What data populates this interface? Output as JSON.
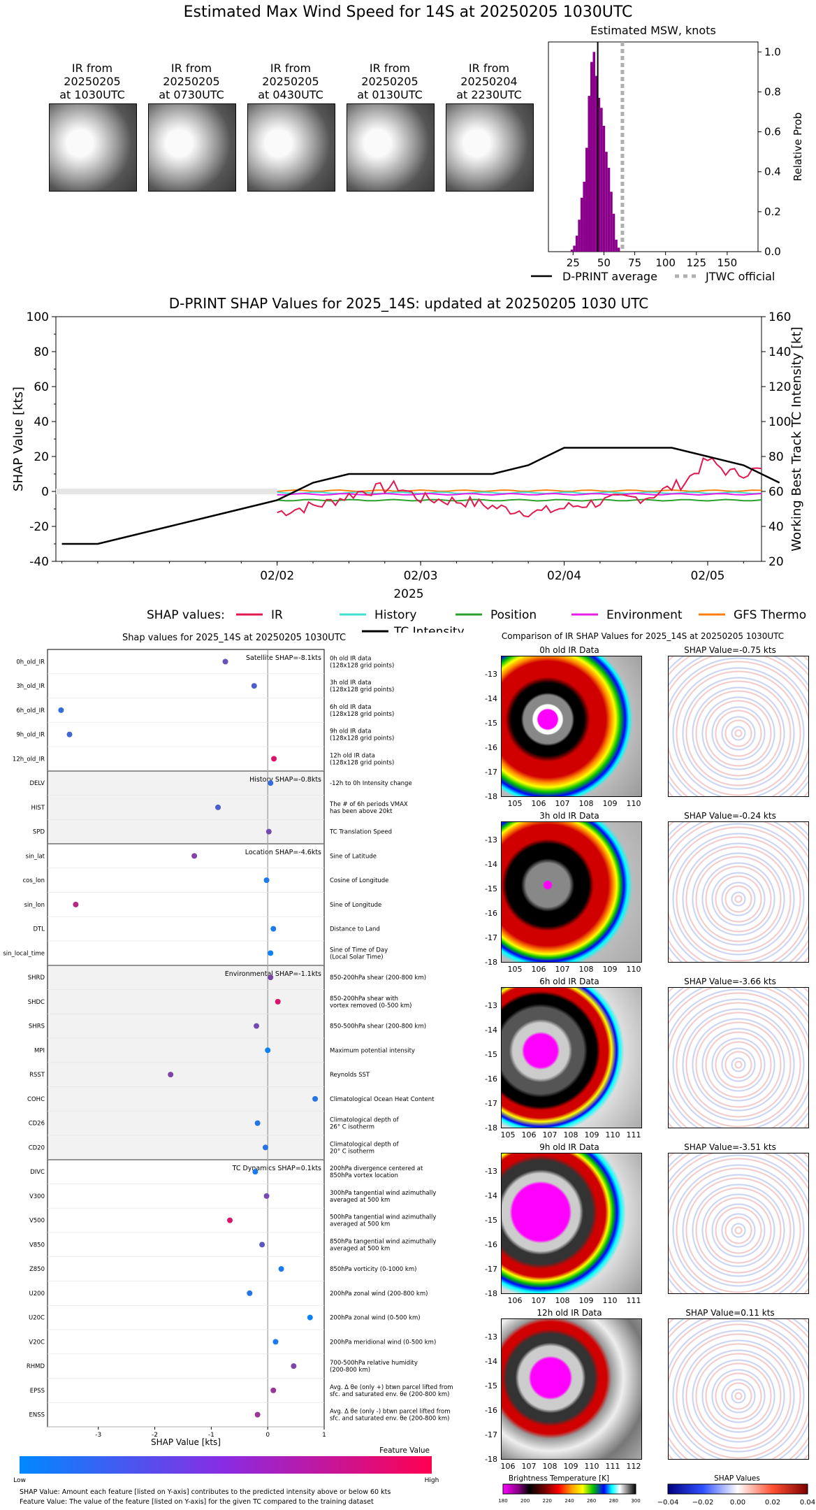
{
  "header": {
    "title": "Estimated Max Wind Speed for 14S at 20250205 1030UTC"
  },
  "ir_thumbnails": [
    {
      "line1": "IR from",
      "line2": "20250205",
      "line3": "at 1030UTC"
    },
    {
      "line1": "IR from",
      "line2": "20250205",
      "line3": "at 0730UTC"
    },
    {
      "line1": "IR from",
      "line2": "20250205",
      "line3": "at 0430UTC"
    },
    {
      "line1": "IR from",
      "line2": "20250205",
      "line3": "at 0130UTC"
    },
    {
      "line1": "IR from",
      "line2": "20250204",
      "line3": "at 2230UTC"
    }
  ],
  "msw": {
    "title": "Estimated MSW, knots",
    "ylabel": "Relative Prob",
    "legend_avg": "D-PRINT average",
    "legend_jtwc": "JTWC official",
    "xticks": [
      "25",
      "50",
      "75",
      "100",
      "125",
      "150"
    ],
    "yticks": [
      "0.0",
      "0.2",
      "0.4",
      "0.6",
      "0.8",
      "1.0"
    ],
    "color_bars": "#8b008b",
    "color_jtwc": "#b0b0b0"
  },
  "shap_ts": {
    "title": "D-PRINT SHAP Values for 2025_14S: updated at 20250205 1030 UTC",
    "ylabel_left": "SHAP Value [kts]",
    "ylabel_right": "Working Best Track TC Intensity [kt]",
    "xlabel": "2025",
    "xticks": [
      "02/02",
      "02/03",
      "02/04",
      "02/05"
    ],
    "yticks_left": [
      "-40",
      "-20",
      "0",
      "20",
      "40",
      "60",
      "80",
      "100"
    ],
    "yticks_right": [
      "20",
      "40",
      "60",
      "80",
      "100",
      "120",
      "140",
      "160"
    ],
    "legend_prefix": "SHAP values:",
    "legend": [
      {
        "name": "IR",
        "color": "#e0194f"
      },
      {
        "name": "History",
        "color": "#40e0d0"
      },
      {
        "name": "Position",
        "color": "#2ca02c"
      },
      {
        "name": "Environment",
        "color": "#e61ee6"
      },
      {
        "name": "GFS Thermo",
        "color": "#ff7f0e"
      }
    ],
    "legend_tc": "TC Intensity"
  },
  "chart_data": [
    {
      "type": "bar",
      "title": "Estimated MSW, knots",
      "xlabel": "",
      "ylabel": "Relative Prob",
      "xlim": [
        5,
        175
      ],
      "ylim": [
        0,
        1.05
      ],
      "bins_x": [
        24,
        26,
        28,
        30,
        32,
        34,
        36,
        38,
        40,
        42,
        44,
        46,
        48,
        50,
        52,
        54,
        56,
        58,
        60,
        62
      ],
      "bins_y": [
        0.01,
        0.03,
        0.08,
        0.16,
        0.27,
        0.35,
        0.52,
        0.78,
        0.95,
        1.0,
        0.88,
        0.77,
        0.72,
        0.63,
        0.5,
        0.42,
        0.3,
        0.19,
        0.06,
        0.02
      ],
      "dprint_average": 45,
      "jtwc_official": 65
    },
    {
      "type": "line",
      "title": "D-PRINT SHAP Values for 2025_14S: updated at 20250205 1030 UTC",
      "xlabel": "2025",
      "ylabel": "SHAP Value [kts]",
      "ylabel_right": "Working Best Track TC Intensity [kt]",
      "ylim": [
        -40,
        100
      ],
      "ylim_right": [
        20,
        160
      ],
      "x_days_range": [
        "01/31 12Z",
        "02/05 09Z"
      ],
      "tc_intensity": {
        "x": [
          "01/31 12Z",
          "01/31 18Z",
          "02/01 00Z",
          "02/01 06Z",
          "02/01 12Z",
          "02/01 18Z",
          "02/02 00Z",
          "02/02 06Z",
          "02/02 12Z",
          "02/02 18Z",
          "02/03 00Z",
          "02/03 06Z",
          "02/03 12Z",
          "02/03 18Z",
          "02/04 00Z",
          "02/04 06Z",
          "02/04 12Z",
          "02/04 18Z",
          "02/05 00Z",
          "02/05 06Z",
          "02/05 12Z"
        ],
        "y": [
          30,
          30,
          35,
          40,
          45,
          50,
          55,
          65,
          70,
          70,
          70,
          70,
          70,
          75,
          85,
          85,
          85,
          85,
          80,
          75,
          65
        ]
      },
      "series": [
        {
          "name": "IR",
          "values_range": [
            -15,
            21
          ]
        },
        {
          "name": "History",
          "approx": -1
        },
        {
          "name": "Position",
          "approx": -5
        },
        {
          "name": "Environment",
          "approx": -1
        },
        {
          "name": "GFS Thermo",
          "approx": 0
        }
      ]
    },
    {
      "type": "scatter",
      "title": "Shap values for 2025_14S at 20250205 1030UTC",
      "xlabel": "SHAP Value [kts]",
      "xlim": [
        -3.9,
        1.0
      ],
      "features": [
        {
          "name": "0h_old_IR",
          "shap": -0.75,
          "fv": 0.4
        },
        {
          "name": "3h_old_IR",
          "shap": -0.24,
          "fv": 0.3
        },
        {
          "name": "6h_old_IR",
          "shap": -3.66,
          "fv": 0.2
        },
        {
          "name": "9h_old_IR",
          "shap": -3.51,
          "fv": 0.25
        },
        {
          "name": "12h_old_IR",
          "shap": 0.11,
          "fv": 0.85
        },
        {
          "name": "DELV",
          "shap": 0.05,
          "fv": 0.2
        },
        {
          "name": "HIST",
          "shap": -0.88,
          "fv": 0.3
        },
        {
          "name": "SPD",
          "shap": 0.02,
          "fv": 0.45
        },
        {
          "name": "sin_lat",
          "shap": -1.3,
          "fv": 0.5
        },
        {
          "name": "cos_lon",
          "shap": -0.02,
          "fv": 0.1
        },
        {
          "name": "sin_lon",
          "shap": -3.4,
          "fv": 0.7
        },
        {
          "name": "DTL",
          "shap": 0.1,
          "fv": 0.1
        },
        {
          "name": "sin_local_time",
          "shap": 0.05,
          "fv": 0.05
        },
        {
          "name": "SHRD",
          "shap": 0.05,
          "fv": 0.5
        },
        {
          "name": "SHDC",
          "shap": 0.18,
          "fv": 0.85
        },
        {
          "name": "SHRS",
          "shap": -0.2,
          "fv": 0.45
        },
        {
          "name": "MPI",
          "shap": 0.0,
          "fv": 0.05
        },
        {
          "name": "RSST",
          "shap": -1.72,
          "fv": 0.5
        },
        {
          "name": "COHC",
          "shap": 0.84,
          "fv": 0.15
        },
        {
          "name": "CD26",
          "shap": -0.18,
          "fv": 0.15
        },
        {
          "name": "CD20",
          "shap": -0.04,
          "fv": 0.15
        },
        {
          "name": "DIVC",
          "shap": -0.22,
          "fv": 0.1
        },
        {
          "name": "V300",
          "shap": -0.02,
          "fv": 0.45
        },
        {
          "name": "V500",
          "shap": -0.67,
          "fv": 0.85
        },
        {
          "name": "V850",
          "shap": -0.1,
          "fv": 0.35
        },
        {
          "name": "Z850",
          "shap": 0.24,
          "fv": 0.1
        },
        {
          "name": "U200",
          "shap": -0.32,
          "fv": 0.15
        },
        {
          "name": "U20C",
          "shap": 0.75,
          "fv": 0.05
        },
        {
          "name": "V20C",
          "shap": 0.14,
          "fv": 0.1
        },
        {
          "name": "RHMD",
          "shap": 0.46,
          "fv": 0.5
        },
        {
          "name": "EPSS",
          "shap": 0.1,
          "fv": 0.6
        },
        {
          "name": "ENSS",
          "shap": -0.18,
          "fv": 0.6
        }
      ]
    }
  ],
  "shap_bar": {
    "title": "Shap values for 2025_14S at 20250205 1030UTC",
    "xlabel": "SHAP Value [kts]",
    "xticks": [
      "-3",
      "-2",
      "-1",
      "0",
      "1"
    ],
    "group_labels": [
      {
        "text": "Satellite SHAP=-8.1kts"
      },
      {
        "text": "History SHAP=-0.8kts"
      },
      {
        "text": "Location SHAP=-4.6kts"
      },
      {
        "text": "Environmental SHAP=-1.1kts"
      },
      {
        "text": "TC Dynamics SHAP=0.1kts"
      }
    ],
    "descriptions": [
      [
        "0h old IR data",
        "(128x128 grid points)"
      ],
      [
        "3h old IR data",
        "(128x128 grid points)"
      ],
      [
        "6h old IR data",
        "(128x128 grid points)"
      ],
      [
        "9h old IR data",
        "(128x128 grid points)"
      ],
      [
        "12h old IR data",
        "(128x128 grid points)"
      ],
      [
        "-12h to 0h Intensity change"
      ],
      [
        "The # of 6h periods VMAX",
        "has been above 20kt"
      ],
      [
        "TC Translation Speed"
      ],
      [
        "Sine of Latitude"
      ],
      [
        "Cosine of Longitude"
      ],
      [
        "Sine of Longitude"
      ],
      [
        "Distance to Land"
      ],
      [
        "Sine of Time of Day",
        "(Local Solar Time)"
      ],
      [
        "850-200hPa shear (200-800 km)"
      ],
      [
        "850-200hPa shear with",
        "vortex removed (0-500 km)"
      ],
      [
        "850-500hPa shear (200-800 km)"
      ],
      [
        "Maximum potential intensity"
      ],
      [
        "Reynolds SST"
      ],
      [
        "Climatological Ocean Heat Content"
      ],
      [
        "Climatological depth of",
        "26° C isotherm"
      ],
      [
        "Climatological depth of",
        "20° C isotherm"
      ],
      [
        "200hPa divergence centered at",
        "850hPa vortex location"
      ],
      [
        "300hPa tangential wind azimuthally",
        "averaged at 500 km"
      ],
      [
        "500hPa tangential wind azimuthally",
        "averaged at 500 km"
      ],
      [
        "850hPa tangential wind azimuthally",
        "averaged at 500 km"
      ],
      [
        "850hPa vorticity (0-1000 km)"
      ],
      [
        "200hPa zonal wind (200-800 km)"
      ],
      [
        "200hPa zonal wind (0-500 km)"
      ],
      [
        "200hPa meridional wind (0-500 km)"
      ],
      [
        "700-500hPa relative humidity",
        "(200-800 km)"
      ],
      [
        "Avg. Δ θe (only +) btwn parcel lifted from",
        "sfc. and saturated env. θe (200-800 km)"
      ],
      [
        "Avg. Δ θe (only -) btwn parcel lifted from",
        "sfc. and saturated env. θe (200-800 km)"
      ]
    ],
    "colorbar_title": "Feature Value",
    "colorbar_low": "Low",
    "colorbar_high": "High",
    "footnote1": "SHAP Value: Amount each feature [listed on Y-axis] contributes to the predicted intensity above or below 60 kts",
    "footnote2": "Feature Value: The value of the feature [listed on Y-axis] for the given TC compared to the training dataset"
  },
  "ir_compare": {
    "title": "Comparison of IR SHAP Values for 2025_14S at 20250205 1030UTC",
    "rows": [
      {
        "left": "0h old IR Data",
        "right": "SHAP Value=-0.75 kts",
        "xticks": [
          "105",
          "106",
          "107",
          "108",
          "109",
          "110"
        ]
      },
      {
        "left": "3h old IR Data",
        "right": "SHAP Value=-0.24 kts",
        "xticks": [
          "105",
          "106",
          "107",
          "108",
          "109",
          "110"
        ]
      },
      {
        "left": "6h old IR Data",
        "right": "SHAP Value=-3.66 kts",
        "xticks": [
          "105",
          "106",
          "107",
          "108",
          "109",
          "110",
          "111"
        ]
      },
      {
        "left": "9h old IR Data",
        "right": "SHAP Value=-3.51 kts",
        "xticks": [
          "106",
          "107",
          "108",
          "109",
          "110",
          "111"
        ]
      },
      {
        "left": "12h old IR Data",
        "right": "SHAP Value=0.11 kts",
        "xticks": [
          "106",
          "107",
          "108",
          "109",
          "110",
          "111",
          "112"
        ]
      }
    ],
    "yticks": [
      "-13",
      "-14",
      "-15",
      "-16",
      "-17",
      "-18"
    ],
    "bt_title": "Brightness Temperature [K]",
    "bt_ticks": [
      "180",
      "200",
      "220",
      "240",
      "260",
      "280",
      "300"
    ],
    "sv_title": "SHAP Values",
    "sv_ticks": [
      "−0.04",
      "−0.02",
      "0.00",
      "0.02",
      "0.04"
    ]
  }
}
